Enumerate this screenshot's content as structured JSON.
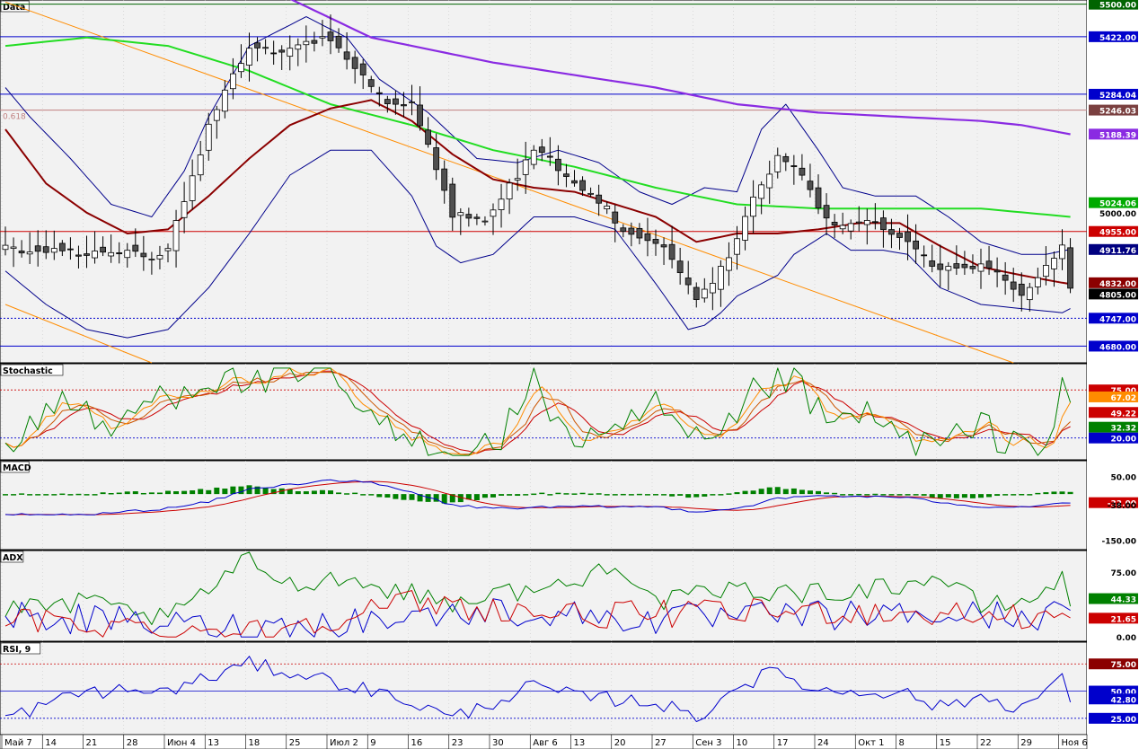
{
  "chart_data": {
    "type": "candlestick-with-indicators",
    "x_axis": {
      "tick_labels": [
        "Май 7",
        "14",
        "21",
        "28",
        "Июн 4",
        "13",
        "18",
        "25",
        "Июл 2",
        "9",
        "16",
        "23",
        "30",
        "Авг 6",
        "13",
        "20",
        "27",
        "Сен 3",
        "10",
        "17",
        "24",
        "Окт 1",
        "8",
        "15",
        "22",
        "29",
        "Ноя 6"
      ],
      "tick_bars": [
        0,
        5,
        10,
        15,
        20,
        25,
        30,
        35,
        40,
        45,
        50,
        55,
        60,
        65,
        70,
        75,
        80,
        85,
        90,
        95,
        100,
        105,
        110,
        115,
        120,
        125,
        130
      ]
    },
    "panels": [
      {
        "name": "Data",
        "ylim": [
          4640,
          5510
        ],
        "price_labels": [
          {
            "value": 5500.0,
            "text": "5500.00",
            "bg": "#006400",
            "fg": "#ffffff"
          },
          {
            "value": 5422.0,
            "text": "5422.00",
            "bg": "#0000cc",
            "fg": "#ffffff"
          },
          {
            "value": 5284.04,
            "text": "5284.04",
            "bg": "#0000cc",
            "fg": "#ffffff"
          },
          {
            "value": 5246.03,
            "text": "5246.03",
            "bg": "#7a4040",
            "fg": "#ffffff"
          },
          {
            "value": 5188.39,
            "text": "5188.39",
            "bg": "#8a2be2",
            "fg": "#ffffff"
          },
          {
            "value": 5024.06,
            "text": "5024.06",
            "bg": "#00aa00",
            "fg": "#ffffff"
          },
          {
            "value": 5000.0,
            "text": "5000.00",
            "bg": "",
            "fg": "#000000"
          },
          {
            "value": 4955.0,
            "text": "4955.00",
            "bg": "#cc0000",
            "fg": "#ffffff"
          },
          {
            "value": 4911.76,
            "text": "4911.76",
            "bg": "#000080",
            "fg": "#ffffff"
          },
          {
            "value": 4832.0,
            "text": "4832.00",
            "bg": "#8b0000",
            "fg": "#ffffff"
          },
          {
            "value": 4805.0,
            "text": "4805.00",
            "bg": "#000000",
            "fg": "#ffffff"
          },
          {
            "value": 4747.0,
            "text": "4747.00",
            "bg": "#0000cc",
            "fg": "#ffffff"
          },
          {
            "value": 4680.0,
            "text": "4680.00",
            "bg": "#0000cc",
            "fg": "#ffffff"
          }
        ],
        "hlines": [
          {
            "value": 5500,
            "color": "#006400",
            "dash": false
          },
          {
            "value": 5422,
            "color": "#0000cc",
            "dash": false
          },
          {
            "value": 5284.04,
            "color": "#0000cc",
            "dash": false
          },
          {
            "value": 5246.03,
            "color": "#c08080",
            "dash": false
          },
          {
            "value": 4955,
            "color": "#cc0000",
            "dash": false
          },
          {
            "value": 4747,
            "color": "#0000cc",
            "dash": true
          },
          {
            "value": 4680,
            "color": "#0000cc",
            "dash": false
          }
        ],
        "annotation": "0.618",
        "trendlines": [
          {
            "x1": 0,
            "y1": 5505,
            "x2": 124,
            "y2": 4640,
            "color": "#ff8c00"
          },
          {
            "x1": 0,
            "y1": 4780,
            "x2": 18,
            "y2": 4640,
            "color": "#ff8c00"
          }
        ],
        "anchors": {
          "close": [
            [
              0,
              4905
            ],
            [
              10,
              4905
            ],
            [
              20,
              4920
            ],
            [
              25,
              5190
            ],
            [
              30,
              5380
            ],
            [
              40,
              5420
            ],
            [
              45,
              5305
            ],
            [
              50,
              5250
            ],
            [
              55,
              4985
            ],
            [
              60,
              5010
            ],
            [
              65,
              5140
            ],
            [
              70,
              5070
            ],
            [
              75,
              4985
            ],
            [
              80,
              4920
            ],
            [
              85,
              4780
            ],
            [
              90,
              4930
            ],
            [
              95,
              5150
            ],
            [
              100,
              5010
            ],
            [
              105,
              4960
            ],
            [
              110,
              4960
            ],
            [
              115,
              4875
            ],
            [
              120,
              4850
            ],
            [
              125,
              4820
            ],
            [
              130,
              4905
            ],
            [
              131,
              4805
            ]
          ],
          "sma20": [
            [
              0,
              5200
            ],
            [
              5,
              5070
            ],
            [
              10,
              5000
            ],
            [
              15,
              4950
            ],
            [
              20,
              4960
            ],
            [
              25,
              5040
            ],
            [
              30,
              5130
            ],
            [
              35,
              5210
            ],
            [
              40,
              5250
            ],
            [
              45,
              5270
            ],
            [
              50,
              5220
            ],
            [
              55,
              5140
            ],
            [
              60,
              5080
            ],
            [
              65,
              5060
            ],
            [
              70,
              5050
            ],
            [
              75,
              5020
            ],
            [
              80,
              4990
            ],
            [
              85,
              4930
            ],
            [
              90,
              4950
            ],
            [
              95,
              4950
            ],
            [
              100,
              4960
            ],
            [
              105,
              4975
            ],
            [
              110,
              4975
            ],
            [
              115,
              4920
            ],
            [
              120,
              4870
            ],
            [
              125,
              4850
            ],
            [
              130,
              4832
            ]
          ],
          "band_up": [
            [
              0,
              5300
            ],
            [
              3,
              5230
            ],
            [
              8,
              5130
            ],
            [
              13,
              5020
            ],
            [
              18,
              4990
            ],
            [
              22,
              5100
            ],
            [
              25,
              5230
            ],
            [
              30,
              5400
            ],
            [
              37,
              5470
            ],
            [
              42,
              5420
            ],
            [
              46,
              5320
            ],
            [
              52,
              5240
            ],
            [
              58,
              5130
            ],
            [
              63,
              5120
            ],
            [
              68,
              5150
            ],
            [
              73,
              5120
            ],
            [
              78,
              5050
            ],
            [
              82,
              5020
            ],
            [
              86,
              5060
            ],
            [
              90,
              5050
            ],
            [
              93,
              5200
            ],
            [
              96,
              5260
            ],
            [
              100,
              5150
            ],
            [
              103,
              5060
            ],
            [
              107,
              5040
            ],
            [
              112,
              5040
            ],
            [
              116,
              4990
            ],
            [
              120,
              4930
            ],
            [
              125,
              4900
            ],
            [
              128,
              4900
            ],
            [
              131,
              4912
            ]
          ],
          "band_dn": [
            [
              0,
              4860
            ],
            [
              5,
              4780
            ],
            [
              10,
              4720
            ],
            [
              15,
              4700
            ],
            [
              20,
              4720
            ],
            [
              25,
              4820
            ],
            [
              30,
              4950
            ],
            [
              35,
              5090
            ],
            [
              40,
              5150
            ],
            [
              45,
              5150
            ],
            [
              50,
              5040
            ],
            [
              53,
              4920
            ],
            [
              56,
              4880
            ],
            [
              60,
              4900
            ],
            [
              65,
              4990
            ],
            [
              70,
              4990
            ],
            [
              75,
              4960
            ],
            [
              80,
              4830
            ],
            [
              84,
              4720
            ],
            [
              86,
              4730
            ],
            [
              88,
              4760
            ],
            [
              90,
              4800
            ],
            [
              93,
              4830
            ],
            [
              95,
              4850
            ],
            [
              97,
              4900
            ],
            [
              101,
              4950
            ],
            [
              104,
              4910
            ],
            [
              108,
              4910
            ],
            [
              111,
              4900
            ],
            [
              115,
              4820
            ],
            [
              120,
              4780
            ],
            [
              125,
              4770
            ],
            [
              130,
              4760
            ],
            [
              131,
              4770
            ]
          ],
          "sma50": [
            [
              0,
              5400
            ],
            [
              10,
              5420
            ],
            [
              20,
              5400
            ],
            [
              30,
              5340
            ],
            [
              40,
              5260
            ],
            [
              50,
              5210
            ],
            [
              60,
              5150
            ],
            [
              70,
              5110
            ],
            [
              80,
              5060
            ],
            [
              90,
              5020
            ],
            [
              100,
              5010
            ],
            [
              110,
              5010
            ],
            [
              120,
              5010
            ],
            [
              131,
              4990
            ]
          ],
          "sma200": [
            [
              0,
              5760
            ],
            [
              20,
              5700
            ],
            [
              31,
              5550
            ],
            [
              45,
              5420
            ],
            [
              60,
              5360
            ],
            [
              80,
              5300
            ],
            [
              90,
              5260
            ],
            [
              100,
              5240
            ],
            [
              110,
              5230
            ],
            [
              120,
              5220
            ],
            [
              125,
              5210
            ],
            [
              131,
              5188
            ]
          ]
        }
      },
      {
        "name": "Stochastic",
        "ylim": [
          -5,
          105
        ],
        "labels": [
          {
            "value": 75.0,
            "text": "75.00",
            "bg": "#cc0000",
            "fg": "#ffffff"
          },
          {
            "value": 67.02,
            "text": "67.02",
            "bg": "#ff8c00",
            "fg": "#ffffff"
          },
          {
            "value": 49.22,
            "text": "49.22",
            "bg": "#cc0000",
            "fg": "#ffffff"
          },
          {
            "value": 32.32,
            "text": "32.32",
            "bg": "#008000",
            "fg": "#ffffff"
          },
          {
            "value": 20.0,
            "text": "20.00",
            "bg": "#0000cc",
            "fg": "#ffffff"
          }
        ],
        "hlines": [
          {
            "value": 75,
            "color": "#cc0000"
          },
          {
            "value": 20,
            "color": "#0000cc"
          }
        ]
      },
      {
        "name": "MACD",
        "ylim": [
          -180,
          100
        ],
        "labels": [
          {
            "value": 50.0,
            "text": "50.00",
            "bg": "",
            "fg": "#000000"
          },
          {
            "value": -32.0,
            "text": "-32.00",
            "bg": "#cc0000",
            "fg": "#ffffff"
          },
          {
            "value": -38.0,
            "text": "-38.00",
            "bg": "",
            "fg": "#000000"
          },
          {
            "value": -150.0,
            "text": "-150.00",
            "bg": "",
            "fg": "#000000"
          }
        ]
      },
      {
        "name": "ADX",
        "ylim": [
          -5,
          100
        ],
        "labels": [
          {
            "value": 75.0,
            "text": "75.00",
            "bg": "",
            "fg": "#000000"
          },
          {
            "value": 44.33,
            "text": "44.33",
            "bg": "#008000",
            "fg": "#ffffff"
          },
          {
            "value": 21.65,
            "text": "21.65",
            "bg": "#cc0000",
            "fg": "#ffffff"
          },
          {
            "value": 0.0,
            "text": "0.00",
            "bg": "",
            "fg": "#000000"
          }
        ]
      },
      {
        "name": "RSI, 9",
        "ylim": [
          10,
          95
        ],
        "labels": [
          {
            "value": 75.0,
            "text": "75.00",
            "bg": "#8b0000",
            "fg": "#ffffff"
          },
          {
            "value": 50.0,
            "text": "50.00",
            "bg": "#0000cc",
            "fg": "#ffffff"
          },
          {
            "value": 42.8,
            "text": "42.80",
            "bg": "#0000cc",
            "fg": "#ffffff"
          },
          {
            "value": 25.0,
            "text": "25.00",
            "bg": "#0000cc",
            "fg": "#ffffff"
          }
        ],
        "hlines": [
          {
            "value": 75,
            "color": "#cc0000",
            "dash": true
          },
          {
            "value": 50,
            "color": "#0000cc",
            "dash": false
          },
          {
            "value": 25,
            "color": "#0000cc",
            "dash": true
          }
        ]
      }
    ],
    "colors": {
      "background": "#f2f2f2",
      "grid": "#c8c8c8",
      "candle_up": "#ffffff",
      "candle_down": "#505050",
      "sma20": "#8b0000",
      "sma50": "#22dd22",
      "sma200": "#8a2be2",
      "bands": "#00008b",
      "stoch_k": "#008000",
      "stoch_d1": "#ff8c00",
      "stoch_d2": "#cc0000",
      "stoch_d3": "#cc5500",
      "macd": "#0000cc",
      "signal": "#cc0000",
      "hist": "#008000",
      "adx": "#008000",
      "di_plus": "#0000cc",
      "di_minus": "#cc0000",
      "rsi": "#0000cc"
    }
  }
}
